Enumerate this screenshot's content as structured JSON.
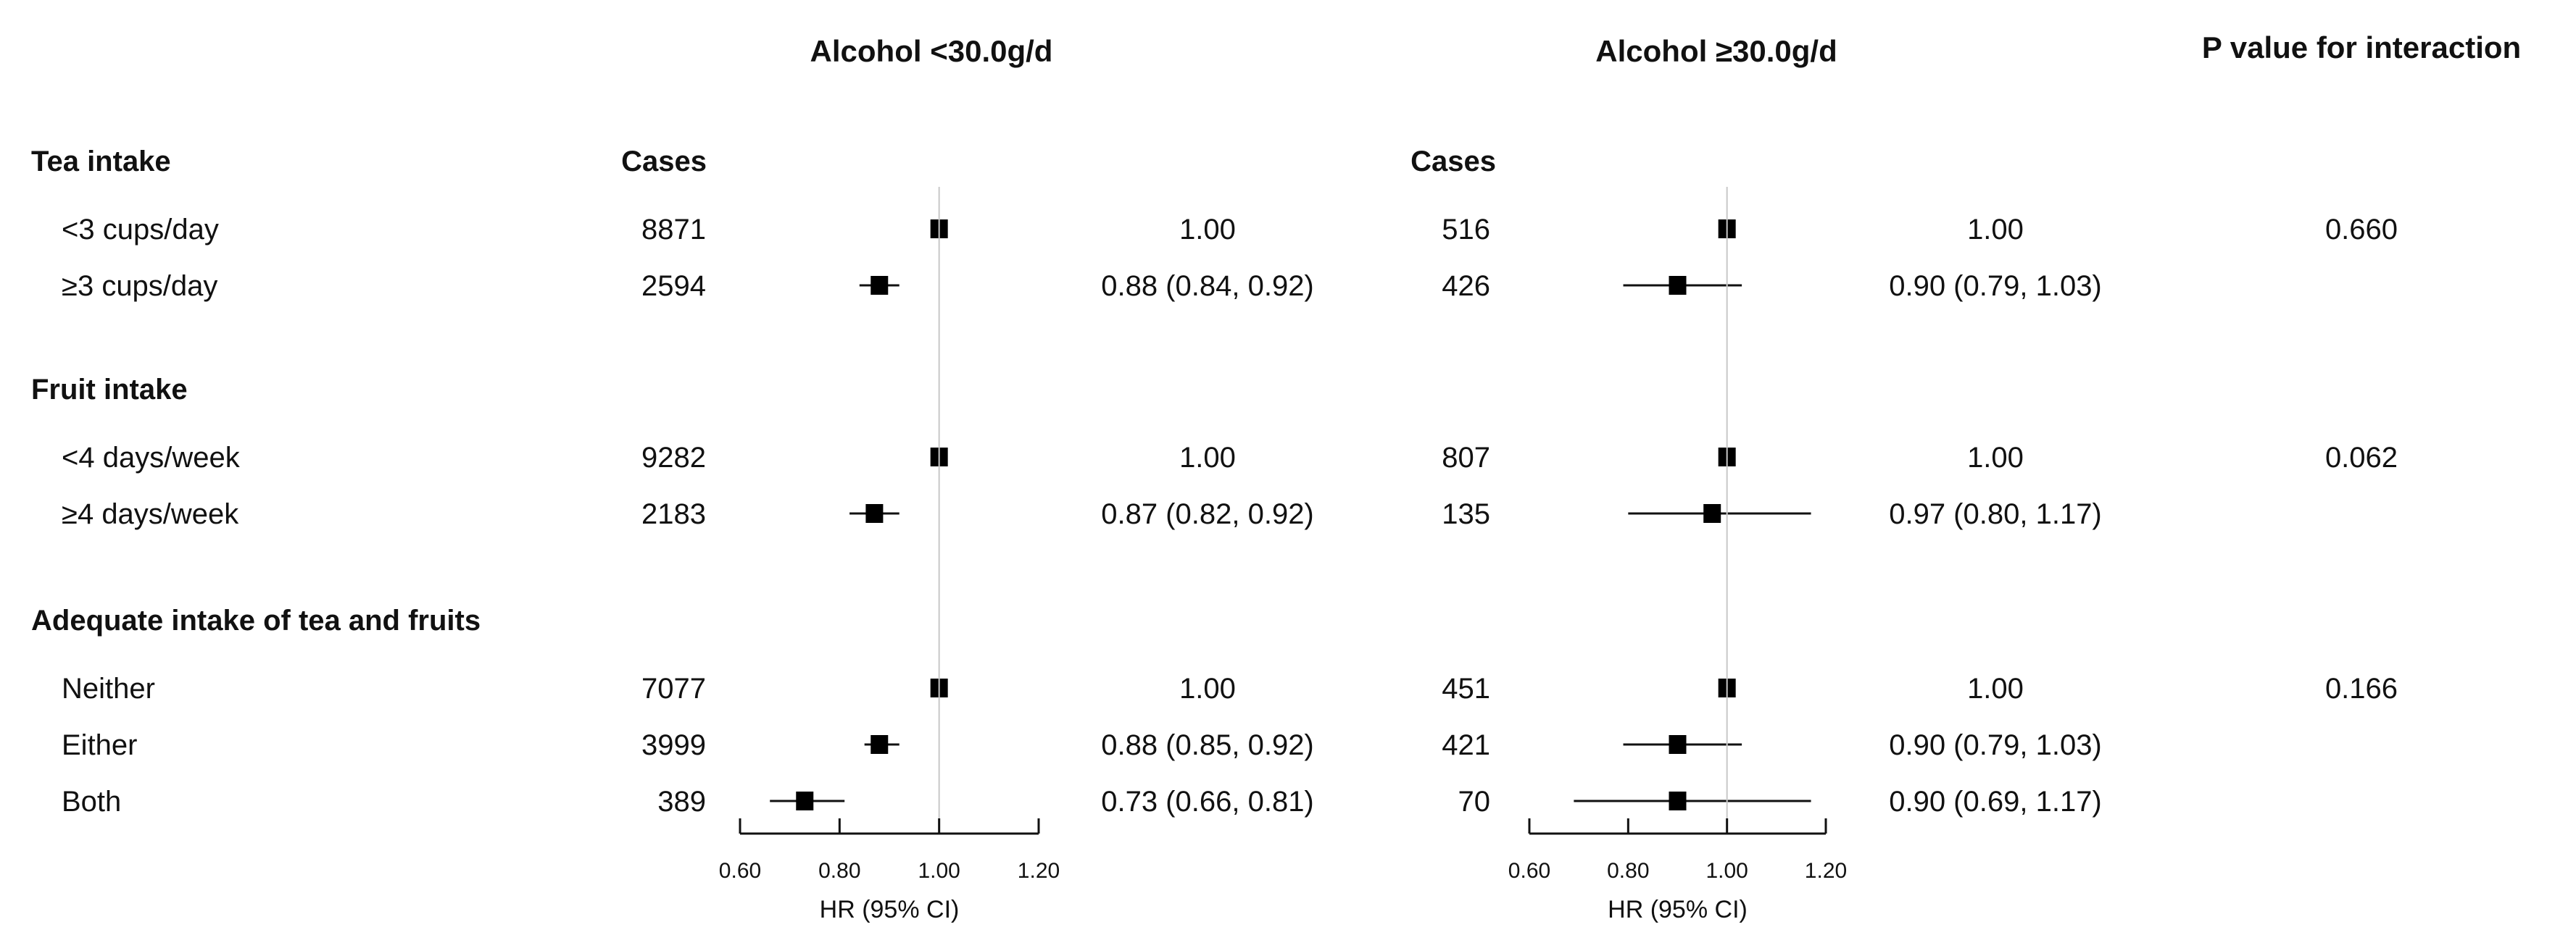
{
  "chart_data": {
    "type": "forest",
    "panel_titles": [
      "Alcohol <30.0g/d",
      "Alcohol ≥30.0g/d"
    ],
    "p_header": "P value for interaction",
    "cases_header": "Cases",
    "xlabel": "HR (95% CI)",
    "xlim": [
      0.6,
      1.2
    ],
    "xticks": [
      "0.60",
      "0.80",
      "1.00",
      "1.20"
    ],
    "reference_line": 1.0,
    "groups": [
      {
        "title": "Tea intake",
        "p_value": "0.660",
        "rows": [
          {
            "label": "<3 cups/day",
            "low": {
              "cases": "8871",
              "hr": 1.0,
              "lo": 1.0,
              "hi": 1.0,
              "text": "1.00"
            },
            "high": {
              "cases": "516",
              "hr": 1.0,
              "lo": 1.0,
              "hi": 1.0,
              "text": "1.00"
            }
          },
          {
            "label": "≥3 cups/day",
            "low": {
              "cases": "2594",
              "hr": 0.88,
              "lo": 0.84,
              "hi": 0.92,
              "text": "0.88 (0.84, 0.92)"
            },
            "high": {
              "cases": "426",
              "hr": 0.9,
              "lo": 0.79,
              "hi": 1.03,
              "text": "0.90 (0.79, 1.03)"
            }
          }
        ]
      },
      {
        "title": "Fruit intake",
        "p_value": "0.062",
        "rows": [
          {
            "label": "<4 days/week",
            "low": {
              "cases": "9282",
              "hr": 1.0,
              "lo": 1.0,
              "hi": 1.0,
              "text": "1.00"
            },
            "high": {
              "cases": "807",
              "hr": 1.0,
              "lo": 1.0,
              "hi": 1.0,
              "text": "1.00"
            }
          },
          {
            "label": "≥4 days/week",
            "low": {
              "cases": "2183",
              "hr": 0.87,
              "lo": 0.82,
              "hi": 0.92,
              "text": "0.87 (0.82, 0.92)"
            },
            "high": {
              "cases": "135",
              "hr": 0.97,
              "lo": 0.8,
              "hi": 1.17,
              "text": "0.97 (0.80, 1.17)"
            }
          }
        ]
      },
      {
        "title": "Adequate intake of tea and fruits",
        "p_value": "0.166",
        "rows": [
          {
            "label": "Neither",
            "low": {
              "cases": "7077",
              "hr": 1.0,
              "lo": 1.0,
              "hi": 1.0,
              "text": "1.00"
            },
            "high": {
              "cases": "451",
              "hr": 1.0,
              "lo": 1.0,
              "hi": 1.0,
              "text": "1.00"
            }
          },
          {
            "label": "Either",
            "low": {
              "cases": "3999",
              "hr": 0.88,
              "lo": 0.85,
              "hi": 0.92,
              "text": "0.88 (0.85, 0.92)"
            },
            "high": {
              "cases": "421",
              "hr": 0.9,
              "lo": 0.79,
              "hi": 1.03,
              "text": "0.90 (0.79, 1.03)"
            }
          },
          {
            "label": "Both",
            "low": {
              "cases": "389",
              "hr": 0.73,
              "lo": 0.66,
              "hi": 0.81,
              "text": "0.73 (0.66, 0.81)"
            },
            "high": {
              "cases": "70",
              "hr": 0.9,
              "lo": 0.69,
              "hi": 1.17,
              "text": "0.90 (0.69, 1.17)"
            }
          }
        ]
      }
    ]
  }
}
